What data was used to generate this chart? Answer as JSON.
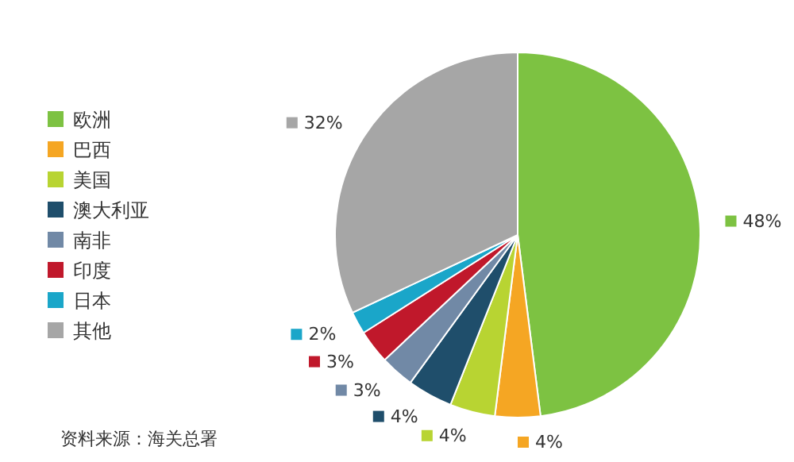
{
  "chart_data": {
    "type": "pie",
    "categories": [
      "欧洲",
      "巴西",
      "美国",
      "澳大利亚",
      "南非",
      "印度",
      "日本",
      "其他"
    ],
    "values": [
      48,
      4,
      4,
      4,
      3,
      3,
      2,
      32
    ],
    "colors": [
      "#7dc242",
      "#f5a623",
      "#b8d432",
      "#1f4e6b",
      "#7189a6",
      "#c0182b",
      "#1aa6c9",
      "#a6a6a6"
    ],
    "legend": "left",
    "value_labels": [
      "48%",
      "4%",
      "4%",
      "4%",
      "3%",
      "3%",
      "2%",
      "32%"
    ],
    "annotations": [
      "资料来源：海关总署"
    ]
  }
}
